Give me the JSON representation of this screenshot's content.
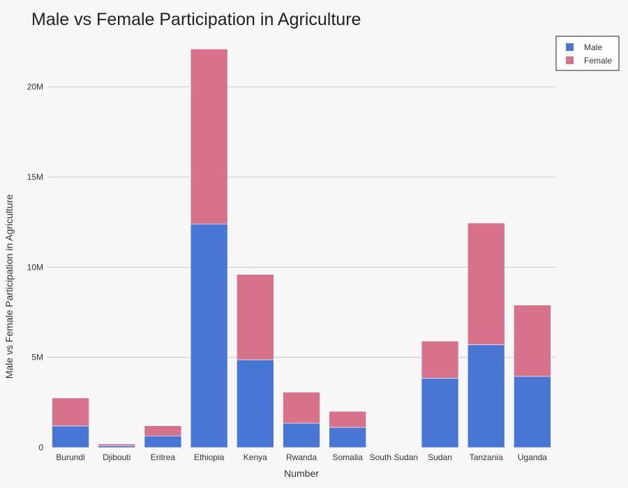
{
  "chart_data": {
    "type": "bar",
    "stacked": true,
    "title": "Male vs Female Participation in Agriculture",
    "xlabel": "Number",
    "ylabel": "Male vs Female Participation in Agriculture",
    "ylim": [
      0,
      22500000
    ],
    "yticks": [
      0,
      5000000,
      10000000,
      15000000,
      20000000
    ],
    "ytick_labels": [
      "0",
      "5M",
      "10M",
      "15M",
      "20M"
    ],
    "grid": true,
    "legend_position": "top-right",
    "categories": [
      "Burundi",
      "Djibouti",
      "Eritrea",
      "Ethiopia",
      "Kenya",
      "Rwanda",
      "Somalia",
      "South Sudan",
      "Sudan",
      "Tanzania",
      "Uganda"
    ],
    "series": [
      {
        "name": "Male",
        "color": "#4876d4",
        "values": [
          1200000,
          90000,
          650000,
          12400000,
          4870000,
          1350000,
          1120000,
          0,
          3850000,
          5700000,
          3950000
        ]
      },
      {
        "name": "Female",
        "color": "#d8718a",
        "values": [
          1550000,
          110000,
          560000,
          9700000,
          4730000,
          1720000,
          890000,
          0,
          2050000,
          6750000,
          3950000
        ]
      }
    ]
  }
}
